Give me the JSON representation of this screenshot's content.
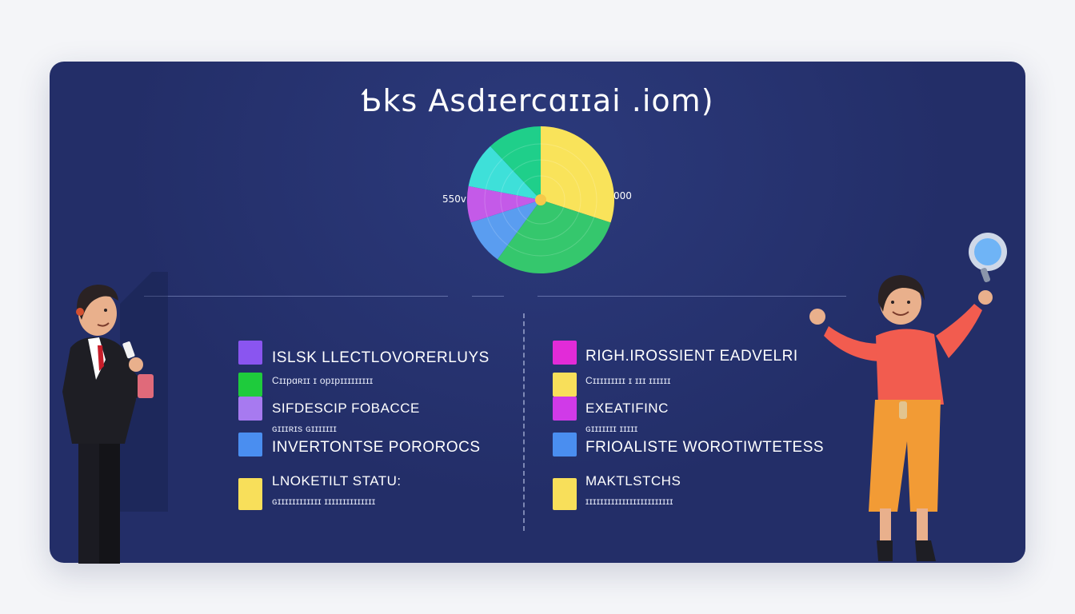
{
  "title": "Ƅks Asdɪercɑɪɪai .iom)",
  "pie": {
    "left_label": "550v",
    "right_label": "000",
    "slices": [
      {
        "color": "#f9e35a",
        "value": 30
      },
      {
        "color": "#35c76d",
        "value": 30
      },
      {
        "color": "#5a9df0",
        "value": 10
      },
      {
        "color": "#c45ae8",
        "value": 8
      },
      {
        "color": "#3ee0d9",
        "value": 10
      },
      {
        "color": "#1fcf8a",
        "value": 12
      }
    ]
  },
  "legend_left": [
    {
      "color": "#8a55f0",
      "text": "ISLSK LLECTLOVORERLUYS"
    },
    {
      "color": "#1ecb3c",
      "text": "Cɪɪpɑʀɪɪ ɪ opɪpɪɪɪɪɪɪɪɪɪ"
    },
    {
      "color": "#a77af0",
      "text": "SIFDESCIP FOBACCE"
    },
    {
      "color": "",
      "text": "ɢɪɪɪʀɪs ɢɪɪɪɪɪɪɪ"
    },
    {
      "color": "#4a8ef0",
      "text": "INVERTONTSE POROROCS"
    },
    {
      "color": "#f8df5a",
      "text": "LNOKETILT STATU:"
    },
    {
      "color": "",
      "text": "ɢɪɪɪɪɪɪɪɪɪɪɪɪ ɪɪɪɪɪɪɪɪɪɪɪɪɪɪ"
    }
  ],
  "legend_right": [
    {
      "color": "#e22bd8",
      "text": "RIGH.IROSSIENT EADVELRI"
    },
    {
      "color": "#f8df5a",
      "text": "Cɪɪɪɪɪɪɪɪɪ ɪ ɪɪɪ ɪɪɪɪɪɪ"
    },
    {
      "color": "#d03ae8",
      "text": "EXEATIFINC"
    },
    {
      "color": "",
      "text": "ɢɪɪɪɪɪɪɪ ɪɪɪɪɪ"
    },
    {
      "color": "#4a8ef0",
      "text": "FRIOALISTE WOROTIWTETESS"
    },
    {
      "color": "#f8df5a",
      "text": "MAKTLSTCHS"
    },
    {
      "color": "",
      "text": "ɪɪɪɪɪɪɪɪɪɪɪɪɪɪɪɪɪɪɪɪɪɪɪɪ"
    }
  ],
  "colors": {
    "card_bg": "#232e68",
    "page_bg": "#f4f5f8"
  }
}
